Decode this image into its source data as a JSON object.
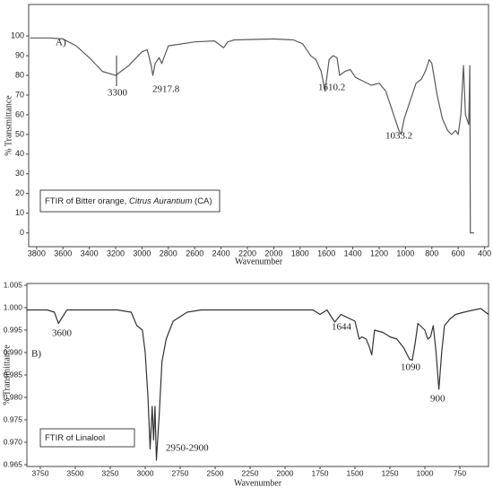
{
  "chart_data": [
    {
      "type": "line",
      "color": "#5a5a5a",
      "xlabel": "Wavenumber",
      "ylabel": "% Transmittance",
      "legend_text": [
        "FTIR of Bitter orange, ",
        "Citrus Aurantium",
        " (CA)"
      ],
      "annotations": [
        "A)",
        "3300",
        "2917.8",
        "1610.2",
        "1033.2"
      ],
      "xlim": [
        3860,
        370
      ],
      "ylim": [
        -7,
        116
      ],
      "xticks": [
        3800,
        3600,
        3400,
        3200,
        3000,
        2800,
        2600,
        2400,
        2200,
        2000,
        1800,
        1600,
        1400,
        1200,
        1000,
        800,
        600,
        400
      ],
      "yticks": [
        0,
        10,
        20,
        30,
        40,
        50,
        60,
        70,
        80,
        90,
        100
      ],
      "x": [
        3850,
        3700,
        3600,
        3500,
        3400,
        3300,
        3200,
        3100,
        3000,
        2960,
        2930,
        2917.8,
        2900,
        2870,
        2850,
        2800,
        2600,
        2450,
        2380,
        2350,
        2300,
        2000,
        1850,
        1780,
        1720,
        1680,
        1640,
        1610.2,
        1580,
        1550,
        1520,
        1500,
        1460,
        1420,
        1380,
        1320,
        1260,
        1200,
        1150,
        1100,
        1050,
        1033.2,
        1010,
        960,
        920,
        880,
        850,
        820,
        800,
        760,
        720,
        680,
        650,
        620,
        600,
        580,
        560,
        545,
        520,
        512,
        508,
        480
      ],
      "values": [
        99,
        99,
        98.5,
        95,
        89,
        82,
        80,
        85,
        92,
        93,
        85,
        80,
        86,
        89,
        86,
        95,
        97,
        97.5,
        94,
        97,
        98,
        98.5,
        98,
        96,
        90,
        88,
        82,
        72,
        88,
        90,
        89,
        80,
        82,
        83,
        79,
        77,
        75,
        76,
        72,
        62,
        52,
        50,
        58,
        68,
        76,
        78,
        82,
        88,
        86,
        70,
        58,
        52,
        50,
        52,
        50,
        60,
        85,
        60,
        55,
        85,
        0,
        0
      ]
    },
    {
      "type": "line",
      "color": "#333333",
      "xlabel": "Wavenumber",
      "ylabel": "% Transmittance",
      "legend_text": [
        "FTIR of Linalool"
      ],
      "annotations": [
        "B)",
        "3600",
        "1644",
        "1090",
        "900",
        "2950-2900"
      ],
      "xlim": [
        3846,
        545
      ],
      "ylim": [
        0.9646,
        1.0054
      ],
      "xticks": [
        3750,
        3500,
        3250,
        3000,
        2750,
        2500,
        2250,
        2000,
        1750,
        1500,
        1250,
        1000,
        750
      ],
      "yticks": [
        {
          "value": 0.965,
          "label": "0.965"
        },
        {
          "value": 0.97,
          "label": "0.970"
        },
        {
          "value": 0.975,
          "label": "0.975"
        },
        {
          "value": 0.98,
          "label": "0.980"
        },
        {
          "value": 0.985,
          "label": "0.985"
        },
        {
          "value": 0.99,
          "label": "0.990"
        },
        {
          "value": 0.995,
          "label": "0.995"
        },
        {
          "value": 1.0,
          "label": "1.000"
        },
        {
          "value": 1.005,
          "label": "1.005"
        }
      ],
      "x": [
        3846,
        3700,
        3650,
        3620,
        3600,
        3560,
        3200,
        3100,
        3080,
        3060,
        3020,
        3000,
        2980,
        2965,
        2950,
        2940,
        2930,
        2920,
        2900,
        2880,
        2850,
        2800,
        2700,
        2600,
        1800,
        1750,
        1700,
        1670,
        1644,
        1600,
        1500,
        1470,
        1450,
        1420,
        1400,
        1380,
        1360,
        1300,
        1250,
        1200,
        1150,
        1110,
        1090,
        1070,
        1050,
        1000,
        980,
        960,
        940,
        920,
        900,
        880,
        860,
        820,
        780,
        720,
        650,
        600,
        545
      ],
      "values": [
        0.9995,
        0.9995,
        0.999,
        0.9965,
        0.9975,
        0.9995,
        0.9995,
        0.999,
        0.9975,
        0.996,
        0.995,
        0.99,
        0.98,
        0.9685,
        0.978,
        0.9705,
        0.978,
        0.966,
        0.976,
        0.988,
        0.993,
        0.997,
        0.999,
        0.9995,
        0.9995,
        0.9985,
        0.9995,
        0.998,
        0.9968,
        0.9985,
        0.997,
        0.993,
        0.9935,
        0.993,
        0.9915,
        0.9895,
        0.995,
        0.9945,
        0.9935,
        0.993,
        0.991,
        0.9885,
        0.9883,
        0.992,
        0.9965,
        0.995,
        0.993,
        0.9935,
        0.996,
        0.99,
        0.9818,
        0.99,
        0.996,
        0.9975,
        0.9985,
        0.999,
        0.9995,
        0.9998,
        0.9985
      ]
    }
  ]
}
